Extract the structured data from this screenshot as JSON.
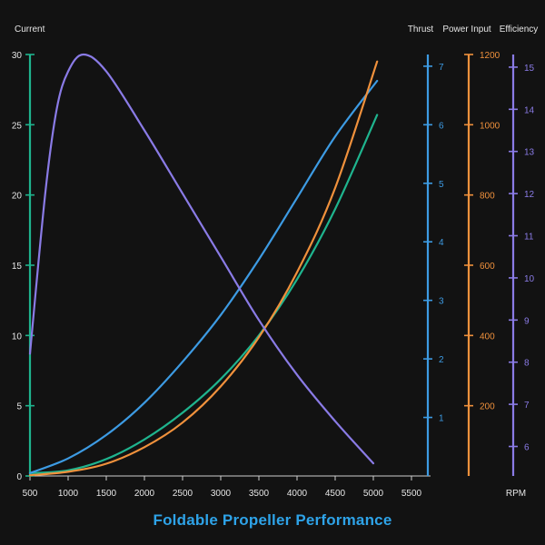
{
  "chart_data": {
    "type": "line",
    "title": "Foldable Propeller Performance",
    "xlabel": "RPM",
    "x_axis": {
      "min": 500,
      "max": 5750,
      "ticks": [
        500,
        1000,
        1500,
        2000,
        2500,
        3000,
        3500,
        4000,
        4500,
        5000,
        5500
      ]
    },
    "axes": [
      {
        "id": "current",
        "label": "Current",
        "color": "#1fb48e",
        "min": 0,
        "max": 30,
        "ticks": [
          0,
          5,
          10,
          15,
          20,
          25,
          30
        ]
      },
      {
        "id": "thrust",
        "label": "Thrust",
        "color": "#3d9be3",
        "min": 0,
        "max": 7.2,
        "ticks": [
          1,
          2,
          3,
          4,
          5,
          6,
          7
        ]
      },
      {
        "id": "power",
        "label": "Power Input",
        "color": "#f0913c",
        "min": 0,
        "max": 1200,
        "ticks": [
          200,
          400,
          600,
          800,
          1000,
          1200
        ]
      },
      {
        "id": "efficiency",
        "label": "Efficiency",
        "color": "#8a7be6",
        "min": 5.3,
        "max": 15.3,
        "ticks": [
          6,
          7,
          8,
          9,
          10,
          11,
          12,
          13,
          14,
          15
        ]
      }
    ],
    "series": [
      {
        "name": "Current",
        "axis": "current",
        "color": "#1fb48e",
        "x": [
          500,
          1000,
          1500,
          2000,
          2500,
          3000,
          3500,
          4000,
          4500,
          5050
        ],
        "y": [
          0.2,
          0.4,
          1.2,
          2.6,
          4.5,
          6.9,
          10.0,
          14.0,
          19.0,
          25.7
        ]
      },
      {
        "name": "Thrust",
        "axis": "thrust",
        "color": "#3d9be3",
        "x": [
          500,
          1000,
          1500,
          2000,
          2500,
          3000,
          3500,
          4000,
          4500,
          5050
        ],
        "y": [
          0.05,
          0.3,
          0.7,
          1.25,
          1.95,
          2.75,
          3.7,
          4.75,
          5.8,
          6.75
        ]
      },
      {
        "name": "Power Input",
        "axis": "power",
        "color": "#f0913c",
        "x": [
          500,
          1000,
          1500,
          2000,
          2500,
          3000,
          3500,
          4000,
          4500,
          5050
        ],
        "y": [
          2,
          12,
          35,
          82,
          152,
          255,
          395,
          580,
          820,
          1180
        ]
      },
      {
        "name": "Efficiency",
        "axis": "efficiency",
        "color": "#8a7be6",
        "x": [
          500,
          700,
          850,
          1000,
          1200,
          1500,
          2000,
          2500,
          3000,
          3500,
          4000,
          4500,
          5000
        ],
        "y": [
          8.2,
          12.0,
          14.0,
          14.9,
          15.3,
          14.9,
          13.5,
          12.0,
          10.5,
          9.0,
          7.7,
          6.6,
          5.6
        ]
      }
    ]
  }
}
